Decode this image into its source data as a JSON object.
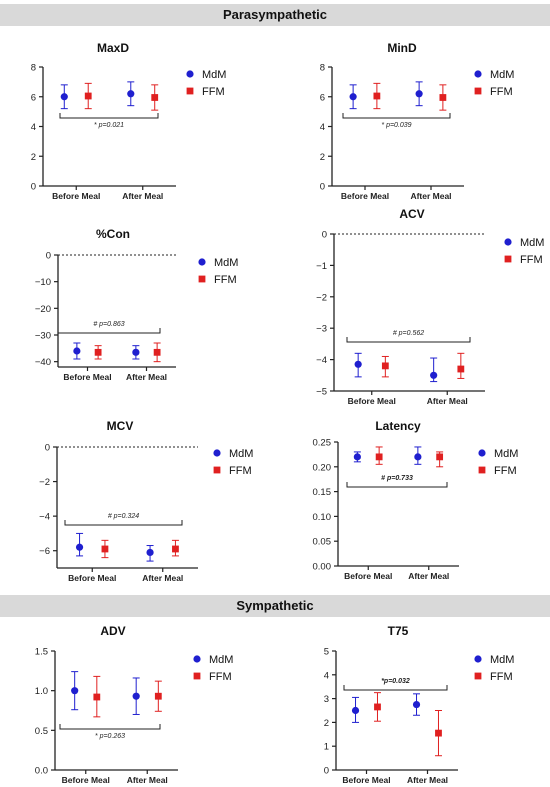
{
  "sections": {
    "parasympathetic": "Parasympathetic",
    "sympathetic": "Sympathetic"
  },
  "colors": {
    "MdM": "#1f1fcf",
    "FFM": "#e02020"
  },
  "chart_data": [
    {
      "type": "scatter",
      "title": "MaxD",
      "categories": [
        "Before Meal",
        "After Meal"
      ],
      "ylim": [
        0,
        8
      ],
      "yticks": [
        "0",
        "2",
        "4",
        "6",
        "8"
      ],
      "series": [
        {
          "name": "MdM",
          "marker": "circle",
          "values": [
            6.0,
            6.2
          ],
          "err_low": [
            5.2,
            5.4
          ],
          "err_high": [
            6.8,
            7.0
          ]
        },
        {
          "name": "FFM",
          "marker": "square",
          "values": [
            6.05,
            5.95
          ],
          "err_low": [
            5.2,
            5.1
          ],
          "err_high": [
            6.9,
            6.8
          ]
        }
      ],
      "annotation": "* p=0.021",
      "legend": "right",
      "zero_line": false
    },
    {
      "type": "scatter",
      "title": "MinD",
      "categories": [
        "Before Meal",
        "After Meal"
      ],
      "ylim": [
        0,
        8
      ],
      "yticks": [
        "0",
        "2",
        "4",
        "6",
        "8"
      ],
      "series": [
        {
          "name": "MdM",
          "marker": "circle",
          "values": [
            6.0,
            6.2
          ],
          "err_low": [
            5.2,
            5.4
          ],
          "err_high": [
            6.8,
            7.0
          ]
        },
        {
          "name": "FFM",
          "marker": "square",
          "values": [
            6.05,
            5.95
          ],
          "err_low": [
            5.2,
            5.1
          ],
          "err_high": [
            6.9,
            6.8
          ]
        }
      ],
      "annotation": "* p=0.039",
      "legend": "right",
      "zero_line": false
    },
    {
      "type": "scatter",
      "title": "%Con",
      "categories": [
        "Before Meal",
        "After Meal"
      ],
      "ylim": [
        -42,
        0
      ],
      "yticks": [
        "0",
        "−10",
        "−20",
        "−30",
        "−40"
      ],
      "series": [
        {
          "name": "MdM",
          "marker": "circle",
          "values": [
            -36,
            -36.5
          ],
          "err_low": [
            -39,
            -39
          ],
          "err_high": [
            -33,
            -34
          ]
        },
        {
          "name": "FFM",
          "marker": "square",
          "values": [
            -36.5,
            -36.5
          ],
          "err_low": [
            -39,
            -40
          ],
          "err_high": [
            -34,
            -33
          ]
        }
      ],
      "annotation": "# p=0.863",
      "legend": "right",
      "zero_line": true
    },
    {
      "type": "scatter",
      "title": "ACV",
      "categories": [
        "Before Meal",
        "After Meal"
      ],
      "ylim": [
        -5,
        0
      ],
      "yticks": [
        "0",
        "−1",
        "−2",
        "−3",
        "−4",
        "−5"
      ],
      "series": [
        {
          "name": "MdM",
          "marker": "circle",
          "values": [
            -4.15,
            -4.5
          ],
          "err_low": [
            -4.55,
            -4.7
          ],
          "err_high": [
            -3.8,
            -3.95
          ]
        },
        {
          "name": "FFM",
          "marker": "square",
          "values": [
            -4.2,
            -4.3
          ],
          "err_low": [
            -4.55,
            -4.6
          ],
          "err_high": [
            -3.9,
            -3.8
          ]
        }
      ],
      "annotation": "# p=0.562",
      "legend": "right",
      "zero_line": true
    },
    {
      "type": "scatter",
      "title": "MCV",
      "categories": [
        "Before Meal",
        "After Meal"
      ],
      "ylim": [
        -7,
        0
      ],
      "yticks": [
        "0",
        "−2",
        "−4",
        "−6"
      ],
      "series": [
        {
          "name": "MdM",
          "marker": "circle",
          "values": [
            -5.8,
            -6.1
          ],
          "err_low": [
            -6.3,
            -6.6
          ],
          "err_high": [
            -5.0,
            -5.7
          ]
        },
        {
          "name": "FFM",
          "marker": "square",
          "values": [
            -5.9,
            -5.9
          ],
          "err_low": [
            -6.4,
            -6.3
          ],
          "err_high": [
            -5.4,
            -5.4
          ]
        }
      ],
      "annotation": "# p=0.324",
      "legend": "right",
      "zero_line": true
    },
    {
      "type": "scatter",
      "title": "Latency",
      "categories": [
        "Before Meal",
        "After Meal"
      ],
      "ylim": [
        0,
        0.25
      ],
      "yticks": [
        "0.00",
        "0.05",
        "0.10",
        "0.15",
        "0.20",
        "0.25"
      ],
      "series": [
        {
          "name": "MdM",
          "marker": "circle",
          "values": [
            0.22,
            0.22
          ],
          "err_low": [
            0.21,
            0.205
          ],
          "err_high": [
            0.23,
            0.24
          ]
        },
        {
          "name": "FFM",
          "marker": "square",
          "values": [
            0.22,
            0.22
          ],
          "err_low": [
            0.205,
            0.2
          ],
          "err_high": [
            0.24,
            0.23
          ]
        }
      ],
      "annotation": "# p=0.733",
      "legend": "right",
      "zero_line": false
    },
    {
      "type": "scatter",
      "title": "ADV",
      "categories": [
        "Before Meal",
        "After Meal"
      ],
      "ylim": [
        0,
        1.5
      ],
      "yticks": [
        "0.0",
        "0.5",
        "1.0",
        "1.5"
      ],
      "series": [
        {
          "name": "MdM",
          "marker": "circle",
          "values": [
            1.0,
            0.93
          ],
          "err_low": [
            0.76,
            0.7
          ],
          "err_high": [
            1.24,
            1.16
          ]
        },
        {
          "name": "FFM",
          "marker": "square",
          "values": [
            0.92,
            0.93
          ],
          "err_low": [
            0.67,
            0.74
          ],
          "err_high": [
            1.18,
            1.12
          ]
        }
      ],
      "annotation": "* p=0.263",
      "legend": "right",
      "zero_line": false
    },
    {
      "type": "scatter",
      "title": "T75",
      "categories": [
        "Before Meal",
        "After Meal"
      ],
      "ylim": [
        0,
        5
      ],
      "yticks": [
        "0",
        "1",
        "2",
        "3",
        "4",
        "5"
      ],
      "series": [
        {
          "name": "MdM",
          "marker": "circle",
          "values": [
            2.5,
            2.75
          ],
          "err_low": [
            2.0,
            2.3
          ],
          "err_high": [
            3.05,
            3.2
          ]
        },
        {
          "name": "FFM",
          "marker": "square",
          "values": [
            2.65,
            1.55
          ],
          "err_low": [
            2.05,
            0.6
          ],
          "err_high": [
            3.25,
            2.5
          ]
        }
      ],
      "annotation": "*p=0.032",
      "legend": "right",
      "zero_line": false
    }
  ]
}
